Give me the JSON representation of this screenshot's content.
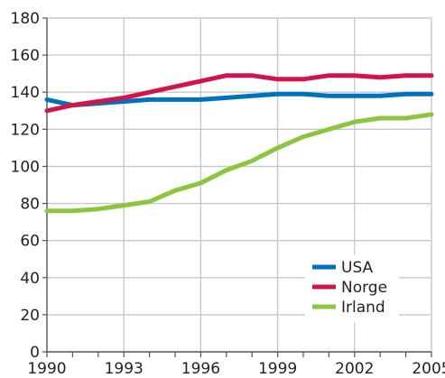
{
  "chart_data": {
    "type": "line",
    "title": "",
    "xlabel": "",
    "ylabel": "",
    "x": [
      1990,
      1991,
      1992,
      1993,
      1994,
      1995,
      1996,
      1997,
      1998,
      1999,
      2000,
      2001,
      2002,
      2003,
      2004,
      2005
    ],
    "x_ticks": [
      1990,
      1993,
      1996,
      1999,
      2002,
      2005
    ],
    "y_ticks": [
      0,
      20,
      40,
      60,
      80,
      100,
      120,
      140,
      160,
      180
    ],
    "xlim": [
      1990,
      2005
    ],
    "ylim": [
      0,
      180
    ],
    "grid": true,
    "legend_position": "bottom-right",
    "series": [
      {
        "name": "USA",
        "color": "#0072bc",
        "values": [
          136,
          133,
          134,
          135,
          136,
          136,
          136,
          137,
          138,
          139,
          139,
          138,
          138,
          138,
          139,
          139
        ]
      },
      {
        "name": "Norge",
        "color": "#d2144a",
        "values": [
          130,
          133,
          135,
          137,
          140,
          143,
          146,
          149,
          149,
          147,
          147,
          149,
          149,
          148,
          149,
          149
        ]
      },
      {
        "name": "Irland",
        "color": "#8cc63f",
        "values": [
          76,
          76,
          77,
          79,
          81,
          87,
          91,
          98,
          103,
          110,
          116,
          120,
          124,
          126,
          126,
          128
        ]
      }
    ]
  }
}
